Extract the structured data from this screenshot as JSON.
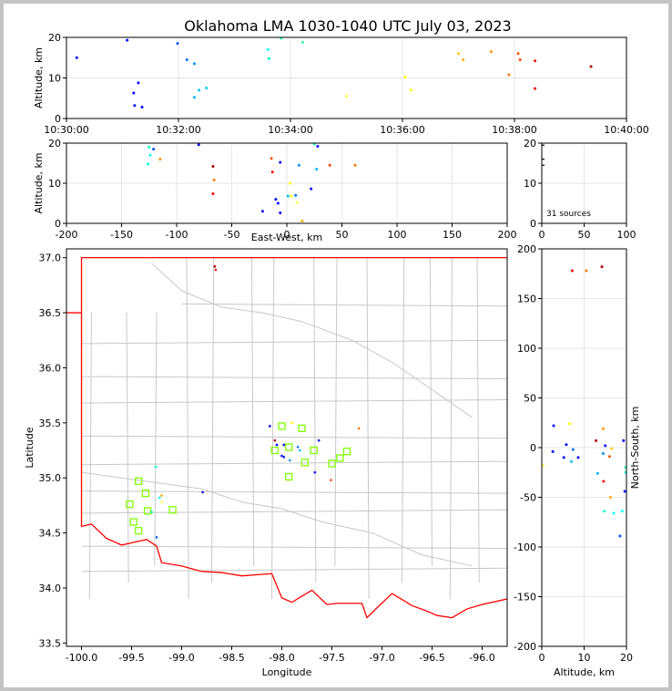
{
  "chart_data": [
    {
      "type": "scatter",
      "panel": "altitude-vs-time",
      "title": "Oklahoma LMA 1030-1040 UTC July 03, 2023",
      "xlabel": "",
      "ylabel": "Altitude, km",
      "xlim": [
        0,
        600
      ],
      "ylim": [
        0,
        20
      ],
      "x_ticks": [
        "10:30:00",
        "10:32:00",
        "10:34:00",
        "10:36:00",
        "10:38:00",
        "10:40:00"
      ],
      "y_ticks": [
        "0",
        "10",
        "20"
      ],
      "points": [
        {
          "t": "10:30:11",
          "x": 11,
          "y": 15.0,
          "color": "#0000ff"
        },
        {
          "t": "10:31:05",
          "x": 65,
          "y": 19.3,
          "color": "#0000ff"
        },
        {
          "t": "10:31:12",
          "x": 72,
          "y": 6.3,
          "color": "#0000ff"
        },
        {
          "t": "10:31:13",
          "x": 73,
          "y": 3.2,
          "color": "#0000ff"
        },
        {
          "t": "10:31:17",
          "x": 77,
          "y": 8.8,
          "color": "#0000ff"
        },
        {
          "t": "10:31:21",
          "x": 81,
          "y": 2.8,
          "color": "#0000ff"
        },
        {
          "t": "10:31:59",
          "x": 119,
          "y": 18.5,
          "color": "#0050ff"
        },
        {
          "t": "10:32:09",
          "x": 129,
          "y": 14.5,
          "color": "#0070ff"
        },
        {
          "t": "10:32:17",
          "x": 137,
          "y": 13.5,
          "color": "#0090ff"
        },
        {
          "t": "10:32:17",
          "x": 137,
          "y": 5.2,
          "color": "#00b0ff"
        },
        {
          "t": "10:32:22",
          "x": 142,
          "y": 7.0,
          "color": "#00c0ff"
        },
        {
          "t": "10:32:30",
          "x": 150,
          "y": 7.5,
          "color": "#00c8ff"
        },
        {
          "t": "10:33:36",
          "x": 216,
          "y": 17.0,
          "color": "#00ffff"
        },
        {
          "t": "10:33:37",
          "x": 217,
          "y": 14.8,
          "color": "#00ffcc"
        },
        {
          "t": "10:33:50",
          "x": 230,
          "y": 19.8,
          "color": "#00ffaa"
        },
        {
          "t": "10:34:13",
          "x": 253,
          "y": 18.8,
          "color": "#30ffaa"
        },
        {
          "t": "10:35:00",
          "x": 300,
          "y": 5.5,
          "color": "#ffff40"
        },
        {
          "t": "10:36:03",
          "x": 363,
          "y": 10.2,
          "color": "#ffff00"
        },
        {
          "t": "10:36:09",
          "x": 369,
          "y": 7.0,
          "color": "#ffff00"
        },
        {
          "t": "10:37:00",
          "x": 420,
          "y": 16.0,
          "color": "#ffcc00"
        },
        {
          "t": "10:37:05",
          "x": 425,
          "y": 14.5,
          "color": "#ffaa00"
        },
        {
          "t": "10:37:35",
          "x": 455,
          "y": 16.5,
          "color": "#ff9900"
        },
        {
          "t": "10:37:54",
          "x": 474,
          "y": 10.8,
          "color": "#ff7700"
        },
        {
          "t": "10:38:04",
          "x": 484,
          "y": 16.0,
          "color": "#ff5500"
        },
        {
          "t": "10:38:06",
          "x": 486,
          "y": 14.5,
          "color": "#ff4400"
        },
        {
          "t": "10:38:22",
          "x": 502,
          "y": 14.2,
          "color": "#ff1100"
        },
        {
          "t": "10:38:22",
          "x": 502,
          "y": 7.4,
          "color": "#ff0000"
        },
        {
          "t": "10:39:22",
          "x": 562,
          "y": 12.8,
          "color": "#aa0000"
        }
      ]
    },
    {
      "type": "scatter",
      "panel": "altitude-vs-east-west",
      "xlabel": "East-West, km",
      "ylabel": "Altitude, km",
      "xlim": [
        -200,
        200
      ],
      "ylim": [
        0,
        20
      ],
      "x_ticks": [
        "-200",
        "-150",
        "-100",
        "-50",
        "0",
        "50",
        "100",
        "150",
        "200"
      ],
      "y_ticks": [
        "0",
        "10",
        "20"
      ],
      "points": [
        {
          "x": -125,
          "y": 19.0,
          "color": "#00ffcc"
        },
        {
          "x": -124,
          "y": 17.0,
          "color": "#00ffff"
        },
        {
          "x": -126,
          "y": 14.8,
          "color": "#00ffcc"
        },
        {
          "x": -121,
          "y": 18.5,
          "color": "#0050ff"
        },
        {
          "x": -115,
          "y": 16.0,
          "color": "#ff9900"
        },
        {
          "x": -80,
          "y": 19.6,
          "color": "#0000ff"
        },
        {
          "x": -67,
          "y": 14.2,
          "color": "#aa0000"
        },
        {
          "x": -66,
          "y": 10.8,
          "color": "#ff7700"
        },
        {
          "x": -67,
          "y": 7.4,
          "color": "#ff0000"
        },
        {
          "x": -22,
          "y": 3.0,
          "color": "#0000ff"
        },
        {
          "x": -14,
          "y": 16.2,
          "color": "#ff5500"
        },
        {
          "x": -13,
          "y": 12.8,
          "color": "#ff1100"
        },
        {
          "x": -10,
          "y": 6.0,
          "color": "#0000ff"
        },
        {
          "x": -8,
          "y": 5.0,
          "color": "#0000ff"
        },
        {
          "x": -6,
          "y": 15.2,
          "color": "#0000ff"
        },
        {
          "x": -6,
          "y": 2.6,
          "color": "#0000ff"
        },
        {
          "x": 1,
          "y": 6.8,
          "color": "#00c0ff"
        },
        {
          "x": 3,
          "y": 10.0,
          "color": "#ffff00"
        },
        {
          "x": 4,
          "y": 6.8,
          "color": "#ffff00"
        },
        {
          "x": 8,
          "y": 7.0,
          "color": "#0070ff"
        },
        {
          "x": 9,
          "y": 5.2,
          "color": "#ffff40"
        },
        {
          "x": 11,
          "y": 14.5,
          "color": "#0090ff"
        },
        {
          "x": 14,
          "y": 0.6,
          "color": "#ffaa00"
        },
        {
          "x": 22,
          "y": 8.6,
          "color": "#0000ff"
        },
        {
          "x": 25,
          "y": 19.8,
          "color": "#00ffaa"
        },
        {
          "x": 27,
          "y": 13.5,
          "color": "#00b0ff"
        },
        {
          "x": 28,
          "y": 19.2,
          "color": "#0000ff"
        },
        {
          "x": 39,
          "y": 14.5,
          "color": "#ff4400"
        },
        {
          "x": 62,
          "y": 14.5,
          "color": "#ff7700"
        }
      ]
    },
    {
      "type": "histogram",
      "panel": "altitude-histogram",
      "xlim": [
        0,
        100
      ],
      "ylim": [
        0,
        20
      ],
      "x_ticks": [
        "0",
        "50",
        "100"
      ],
      "y_ticks": [
        "0",
        "10",
        "20"
      ],
      "annotation": "31 sources",
      "bins": [
        {
          "altitude": 19.5,
          "count": 1
        },
        {
          "altitude": 16.0,
          "count": 1
        },
        {
          "altitude": 14.5,
          "count": 1
        }
      ]
    },
    {
      "type": "map-scatter",
      "panel": "plan-view",
      "xlabel": "Longitude",
      "ylabel": "Latitude",
      "xlim": [
        -100.15,
        -95.75
      ],
      "ylim": [
        33.47,
        37.08
      ],
      "x_ticks": [
        "-100.0",
        "-99.5",
        "-99.0",
        "-98.5",
        "-98.0",
        "-97.5",
        "-97.0",
        "-96.5",
        "-96.0"
      ],
      "y_ticks": [
        "33.5",
        "34.0",
        "34.5",
        "35.0",
        "35.5",
        "36.0",
        "36.5",
        "37.0"
      ],
      "stations": [
        {
          "lon": -99.43,
          "lat": 34.97
        },
        {
          "lon": -99.36,
          "lat": 34.86
        },
        {
          "lon": -99.52,
          "lat": 34.76
        },
        {
          "lon": -99.34,
          "lat": 34.7
        },
        {
          "lon": -99.09,
          "lat": 34.71
        },
        {
          "lon": -99.48,
          "lat": 34.6
        },
        {
          "lon": -99.43,
          "lat": 34.52
        },
        {
          "lon": -98.0,
          "lat": 35.47
        },
        {
          "lon": -97.8,
          "lat": 35.45
        },
        {
          "lon": -98.07,
          "lat": 35.25
        },
        {
          "lon": -97.93,
          "lat": 35.28
        },
        {
          "lon": -97.68,
          "lat": 35.25
        },
        {
          "lon": -97.35,
          "lat": 35.24
        },
        {
          "lon": -97.42,
          "lat": 35.18
        },
        {
          "lon": -97.77,
          "lat": 35.14
        },
        {
          "lon": -97.5,
          "lat": 35.13
        },
        {
          "lon": -97.93,
          "lat": 35.01
        }
      ],
      "points": [
        {
          "lon": -98.67,
          "lat": 36.92,
          "color": "#aa0000"
        },
        {
          "lon": -98.66,
          "lat": 36.89,
          "color": "#ff1100"
        },
        {
          "lon": -98.12,
          "lat": 35.47,
          "color": "#0000ff"
        },
        {
          "lon": -97.9,
          "lat": 35.5,
          "color": "#ffff00"
        },
        {
          "lon": -97.23,
          "lat": 35.45,
          "color": "#ff7700"
        },
        {
          "lon": -98.07,
          "lat": 35.34,
          "color": "#aa0000"
        },
        {
          "lon": -98.05,
          "lat": 35.3,
          "color": "#0000ff"
        },
        {
          "lon": -97.98,
          "lat": 35.3,
          "color": "#0000ff"
        },
        {
          "lon": -97.84,
          "lat": 35.28,
          "color": "#0070ff"
        },
        {
          "lon": -97.82,
          "lat": 35.25,
          "color": "#00b0ff"
        },
        {
          "lon": -97.63,
          "lat": 35.34,
          "color": "#0000ff"
        },
        {
          "lon": -98.0,
          "lat": 35.2,
          "color": "#0000ff"
        },
        {
          "lon": -97.98,
          "lat": 35.19,
          "color": "#0000ff"
        },
        {
          "lon": -97.92,
          "lat": 35.16,
          "color": "#0090ff"
        },
        {
          "lon": -97.67,
          "lat": 35.05,
          "color": "#0000ff"
        },
        {
          "lon": -97.51,
          "lat": 34.98,
          "color": "#ff4400"
        },
        {
          "lon": -99.26,
          "lat": 35.1,
          "color": "#00ffcc"
        },
        {
          "lon": -98.79,
          "lat": 34.87,
          "color": "#0000ff"
        },
        {
          "lon": -99.2,
          "lat": 34.84,
          "color": "#ffaa00"
        },
        {
          "lon": -99.22,
          "lat": 34.82,
          "color": "#00ffff"
        },
        {
          "lon": -99.3,
          "lat": 34.69,
          "color": "#00ffaa"
        },
        {
          "lon": -99.25,
          "lat": 34.46,
          "color": "#0050ff"
        },
        {
          "lon": -99.2,
          "lat": 34.78,
          "color": "#ffff40"
        }
      ]
    },
    {
      "type": "scatter",
      "panel": "north-south-vs-altitude",
      "xlabel": "Altitude, km",
      "ylabel": "North-South, km",
      "xlim": [
        0,
        20
      ],
      "ylim": [
        -200,
        200
      ],
      "x_ticks": [
        "0",
        "10",
        "20"
      ],
      "y_ticks": [
        "-200",
        "-150",
        "-100",
        "-50",
        "0",
        "50",
        "100",
        "150",
        "200"
      ],
      "points": [
        {
          "x": 7.2,
          "y": 178,
          "color": "#ff0000"
        },
        {
          "x": 10.5,
          "y": 178,
          "color": "#ff7700"
        },
        {
          "x": 14.2,
          "y": 182,
          "color": "#aa0000"
        },
        {
          "x": 2.8,
          "y": 22,
          "color": "#0000ff"
        },
        {
          "x": 6.6,
          "y": 24,
          "color": "#ffff00"
        },
        {
          "x": 14.5,
          "y": 19,
          "color": "#ff9900"
        },
        {
          "x": 12.8,
          "y": 7,
          "color": "#aa0000"
        },
        {
          "x": 19.3,
          "y": 7,
          "color": "#0000ff"
        },
        {
          "x": 5.8,
          "y": 3,
          "color": "#0000ff"
        },
        {
          "x": 15.0,
          "y": 2,
          "color": "#0000ff"
        },
        {
          "x": 16.5,
          "y": -1,
          "color": "#ffcc00"
        },
        {
          "x": 2.6,
          "y": -4,
          "color": "#0000ff"
        },
        {
          "x": 7.4,
          "y": -2,
          "color": "#0070ff"
        },
        {
          "x": 14.5,
          "y": -6,
          "color": "#0090ff"
        },
        {
          "x": 16.0,
          "y": -9,
          "color": "#ff5500"
        },
        {
          "x": 5.2,
          "y": -10,
          "color": "#0000ff"
        },
        {
          "x": 8.6,
          "y": -10,
          "color": "#0000ff"
        },
        {
          "x": 7.0,
          "y": -14,
          "color": "#00c0ff"
        },
        {
          "x": 0.3,
          "y": -18,
          "color": "#ffff40"
        },
        {
          "x": 19.8,
          "y": -20,
          "color": "#00ffaa"
        },
        {
          "x": 19.8,
          "y": -25,
          "color": "#00ffcc"
        },
        {
          "x": 13.2,
          "y": -26,
          "color": "#00b0ff"
        },
        {
          "x": 14.6,
          "y": -34,
          "color": "#ff1100"
        },
        {
          "x": 19.6,
          "y": -44,
          "color": "#0000ff"
        },
        {
          "x": 16.2,
          "y": -50,
          "color": "#ffaa00"
        },
        {
          "x": 14.8,
          "y": -64,
          "color": "#00ffcc"
        },
        {
          "x": 19.0,
          "y": -64,
          "color": "#00ffff"
        },
        {
          "x": 17.0,
          "y": -66,
          "color": "#00ffff"
        },
        {
          "x": 18.5,
          "y": -89,
          "color": "#0050ff"
        }
      ]
    }
  ]
}
